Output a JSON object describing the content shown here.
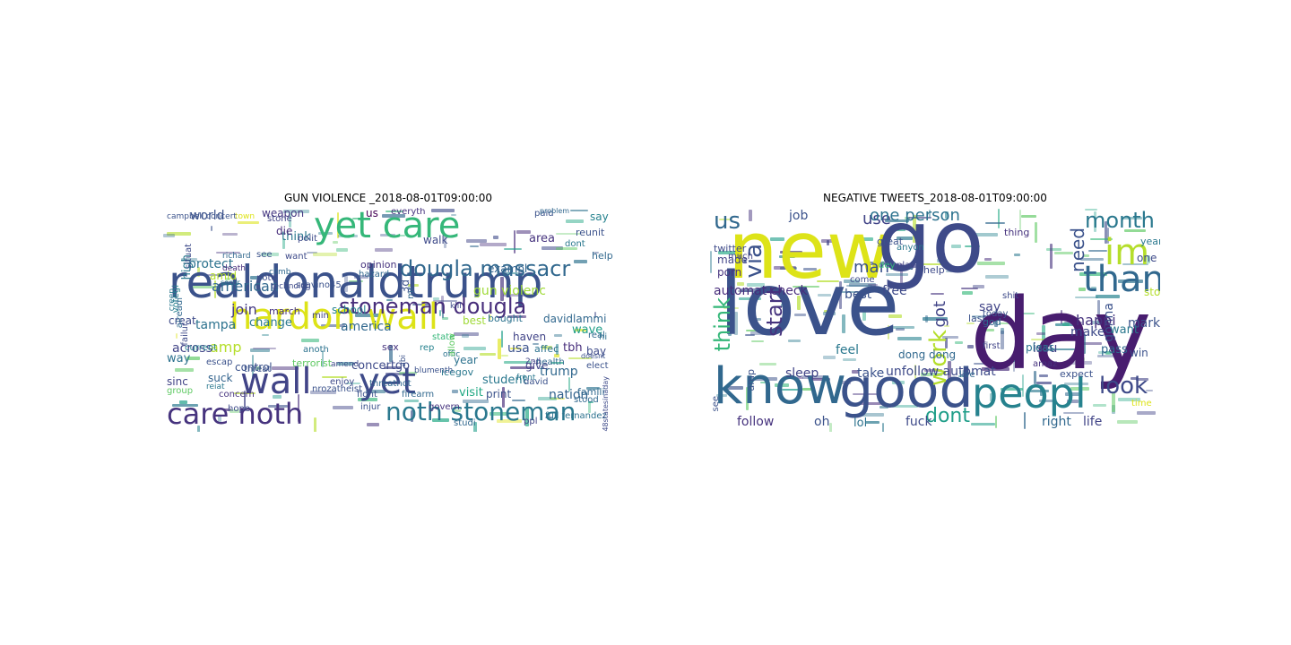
{
  "figure": {
    "panels": [
      {
        "title": "GUN VIOLENCE _2018-08-01T09:00:00",
        "words": [
          {
            "text": "realdonaldtrump",
            "color": "#3b528b"
          },
          {
            "text": "yet care",
            "color": "#35b779"
          },
          {
            "text": "hardon wall",
            "color": "#dde318"
          },
          {
            "text": "wall",
            "color": "#414487"
          },
          {
            "text": "yet",
            "color": "#3e4a89"
          },
          {
            "text": "care noth",
            "color": "#46337e"
          },
          {
            "text": "noth stoneman",
            "color": "#2a788e"
          },
          {
            "text": "dougla massacr",
            "color": "#31688e"
          },
          {
            "text": "stoneman dougla",
            "color": "#472d7b"
          },
          {
            "text": "american",
            "color": "#31688e"
          },
          {
            "text": "join",
            "color": "#443983"
          },
          {
            "text": "protect",
            "color": "#2c728e"
          },
          {
            "text": "world",
            "color": "#3b528b"
          },
          {
            "text": "weapon",
            "color": "#453781"
          },
          {
            "text": "gun violenc",
            "color": "#a0da39"
          },
          {
            "text": "exampl",
            "color": "#33638d"
          },
          {
            "text": "amp",
            "color": "#b5de2b"
          },
          {
            "text": "america",
            "color": "#31688e"
          },
          {
            "text": "school",
            "color": "#26828e"
          },
          {
            "text": "change",
            "color": "#2a788e"
          },
          {
            "text": "march",
            "color": "#46337e"
          },
          {
            "text": "tampa",
            "color": "#2c728e"
          },
          {
            "text": "creat",
            "color": "#3e4a89"
          },
          {
            "text": "across",
            "color": "#414487"
          },
          {
            "text": "control",
            "color": "#3b528b"
          },
          {
            "text": "concertgo",
            "color": "#3e4a89"
          },
          {
            "text": "student",
            "color": "#2a788e"
          },
          {
            "text": "trump",
            "color": "#31688e"
          },
          {
            "text": "nation",
            "color": "#33638d"
          },
          {
            "text": "usa",
            "color": "#3b528b"
          },
          {
            "text": "give",
            "color": "#414487"
          },
          {
            "text": "tbh",
            "color": "#472d7b"
          },
          {
            "text": "visit",
            "color": "#22a884"
          },
          {
            "text": "print",
            "color": "#3b528b"
          },
          {
            "text": "year",
            "color": "#2c728e"
          },
          {
            "text": "best",
            "color": "#a0da39"
          },
          {
            "text": "wave",
            "color": "#1f9e89"
          },
          {
            "text": "area",
            "color": "#46337e"
          },
          {
            "text": "say",
            "color": "#26828e"
          },
          {
            "text": "help",
            "color": "#31688e"
          },
          {
            "text": "reunit",
            "color": "#3b528b"
          },
          {
            "text": "davidlammi",
            "color": "#31688e"
          },
          {
            "text": "bay",
            "color": "#3e4a89"
          },
          {
            "text": "haven",
            "color": "#414487"
          },
          {
            "text": "bought",
            "color": "#2c728e"
          },
          {
            "text": "opinion",
            "color": "#46337e"
          },
          {
            "text": "think",
            "color": "#2a788e"
          },
          {
            "text": "walk",
            "color": "#3e4a89"
          },
          {
            "text": "high",
            "color": "#2a788e"
          },
          {
            "text": "way",
            "color": "#2c728e"
          },
          {
            "text": "sinc",
            "color": "#414487"
          },
          {
            "text": "fight",
            "color": "#3b528b"
          },
          {
            "text": "hope",
            "color": "#3e4a89"
          },
          {
            "text": "firearm",
            "color": "#31688e"
          },
          {
            "text": "sex",
            "color": "#46337e"
          },
          {
            "text": "die",
            "color": "#472d7b"
          },
          {
            "text": "us",
            "color": "#440154"
          },
          {
            "text": "3d",
            "color": "#3b528b"
          },
          {
            "text": "terrorist",
            "color": "#5ec962"
          },
          {
            "text": "escap",
            "color": "#3b528b"
          },
          {
            "text": "current",
            "color": "#26828e"
          },
          {
            "text": "famili",
            "color": "#31688e"
          },
          {
            "text": "affec",
            "color": "#2c728e"
          },
          {
            "text": "suck",
            "color": "#33638d"
          },
          {
            "text": "amid",
            "color": "#b5de2b"
          },
          {
            "text": "concern",
            "color": "#46337e"
          },
          {
            "text": "enjoy",
            "color": "#3e4a89"
          },
          {
            "text": "icegov",
            "color": "#2a788e"
          },
          {
            "text": "david",
            "color": "#3b528b"
          },
          {
            "text": "health",
            "color": "#31688e"
          },
          {
            "text": "stone",
            "color": "#414487"
          },
          {
            "text": "town",
            "color": "#dde318"
          },
          {
            "text": "note",
            "color": "#3e4a89"
          },
          {
            "text": "scavino45",
            "color": "#3b528b"
          },
          {
            "text": "threatnot",
            "color": "#31688e"
          },
          {
            "text": "rep",
            "color": "#26828e"
          },
          {
            "text": "elect",
            "color": "#3b528b"
          },
          {
            "text": "real",
            "color": "#31688e"
          },
          {
            "text": "hi",
            "color": "#2c728e"
          },
          {
            "text": "death",
            "color": "#472d7b"
          },
          {
            "text": "situat",
            "color": "#3e4a89"
          },
          {
            "text": "votegi",
            "color": "#26828e"
          },
          {
            "text": "paid",
            "color": "#3b528b"
          },
          {
            "text": "dont",
            "color": "#2a788e"
          },
          {
            "text": "everyth",
            "color": "#46337e"
          },
          {
            "text": "polit",
            "color": "#3e4a89"
          },
          {
            "text": "hazard",
            "color": "#31688e"
          },
          {
            "text": "anoth",
            "color": "#2c728e"
          },
          {
            "text": "min",
            "color": "#414487"
          },
          {
            "text": "see",
            "color": "#3b528b"
          },
          {
            "text": "richard",
            "color": "#31688e"
          },
          {
            "text": "want",
            "color": "#3e4a89"
          },
          {
            "text": "front",
            "color": "#2a788e"
          },
          {
            "text": "state",
            "color": "#35b779"
          },
          {
            "text": "injur",
            "color": "#3b528b"
          },
          {
            "text": "govern",
            "color": "#46337e"
          },
          {
            "text": "studi",
            "color": "#31688e"
          },
          {
            "text": "ppl",
            "color": "#414487"
          },
          {
            "text": "full fernandez",
            "color": "#2c728e"
          },
          {
            "text": "doesnt",
            "color": "#3b528b"
          },
          {
            "text": "48statesinaday",
            "color": "#3e4a89"
          },
          {
            "text": "stood",
            "color": "#31688e"
          },
          {
            "text": "group",
            "color": "#5ec962"
          },
          {
            "text": "nrozatheist",
            "color": "#3b528b"
          },
          {
            "text": "reiat",
            "color": "#2a788e"
          },
          {
            "text": "climb",
            "color": "#31688e"
          },
          {
            "text": "technolog",
            "color": "#3e4a89"
          },
          {
            "text": "offic",
            "color": "#2c728e"
          },
          {
            "text": "blumenth",
            "color": "#3b528b"
          },
          {
            "text": "alreadi",
            "color": "#31688e"
          },
          {
            "text": "failur",
            "color": "#3e4a89"
          },
          {
            "text": "creep",
            "color": "#2a788e"
          },
          {
            "text": "threat",
            "color": "#3b528b"
          },
          {
            "text": "mr",
            "color": "#31688e"
          },
          {
            "text": "2nd",
            "color": "#414487"
          },
          {
            "text": "abi",
            "color": "#3b528b"
          },
          {
            "text": "allow",
            "color": "#5ec962"
          },
          {
            "text": "kill",
            "color": "#3e4a89"
          },
          {
            "text": "problem",
            "color": "#31688e"
          },
          {
            "text": "campbell concert",
            "color": "#3b528b"
          },
          {
            "text": "secur",
            "color": "#2c728e"
          },
          {
            "text": "amend",
            "color": "#3e4a89"
          }
        ]
      },
      {
        "title": "NEGATIVE TWEETS_2018-08-01T09:00:00",
        "words": [
          {
            "text": "new",
            "color": "#dde318"
          },
          {
            "text": "love",
            "color": "#3b528b"
          },
          {
            "text": "go",
            "color": "#3e4a89"
          },
          {
            "text": "day",
            "color": "#481d6f"
          },
          {
            "text": "know",
            "color": "#31688e"
          },
          {
            "text": "good",
            "color": "#3b528b"
          },
          {
            "text": "peopl",
            "color": "#26828e"
          },
          {
            "text": "thank",
            "color": "#31688e"
          },
          {
            "text": "im",
            "color": "#b5de2b"
          },
          {
            "text": "month",
            "color": "#2a788e"
          },
          {
            "text": "us",
            "color": "#31688e"
          },
          {
            "text": "via",
            "color": "#3b528b"
          },
          {
            "text": "think",
            "color": "#35b779"
          },
          {
            "text": "start",
            "color": "#46337e"
          },
          {
            "text": "work",
            "color": "#b5de2b"
          },
          {
            "text": "got",
            "color": "#414487"
          },
          {
            "text": "need",
            "color": "#3b528b"
          },
          {
            "text": "look",
            "color": "#3e4a89"
          },
          {
            "text": "dont",
            "color": "#1f9e89"
          },
          {
            "text": "man",
            "color": "#3b528b"
          },
          {
            "text": "use",
            "color": "#414487"
          },
          {
            "text": "one person",
            "color": "#2c728e"
          },
          {
            "text": "automat check",
            "color": "#472d7b"
          },
          {
            "text": "best",
            "color": "#3b528b"
          },
          {
            "text": "free",
            "color": "#3e4a89"
          },
          {
            "text": "say",
            "color": "#414487"
          },
          {
            "text": "take",
            "color": "#3b528b"
          },
          {
            "text": "feel",
            "color": "#2a788e"
          },
          {
            "text": "sleep",
            "color": "#414487"
          },
          {
            "text": "unfollow automat",
            "color": "#3e4a89"
          },
          {
            "text": "follow",
            "color": "#46337e"
          },
          {
            "text": "oh",
            "color": "#3b528b"
          },
          {
            "text": "lol",
            "color": "#2c728e"
          },
          {
            "text": "fuck",
            "color": "#3e4a89"
          },
          {
            "text": "right",
            "color": "#31688e"
          },
          {
            "text": "life",
            "color": "#414487"
          },
          {
            "text": "gonna",
            "color": "#3b528b"
          },
          {
            "text": "happi",
            "color": "#46337e"
          },
          {
            "text": "make",
            "color": "#3e4a89"
          },
          {
            "text": "want",
            "color": "#2a788e"
          },
          {
            "text": "market",
            "color": "#3b528b"
          },
          {
            "text": "pass",
            "color": "#31688e"
          },
          {
            "text": "issu",
            "color": "#414487"
          },
          {
            "text": "pleas",
            "color": "#2c728e"
          },
          {
            "text": "win",
            "color": "#3b528b"
          },
          {
            "text": "one",
            "color": "#3e4a89"
          },
          {
            "text": "stop",
            "color": "#b5de2b"
          },
          {
            "text": "job",
            "color": "#3b528b"
          },
          {
            "text": "porn",
            "color": "#46337e"
          },
          {
            "text": "made",
            "color": "#414487"
          },
          {
            "text": "twitter",
            "color": "#3e4a89"
          },
          {
            "text": "dong dong",
            "color": "#31688e"
          },
          {
            "text": "amp",
            "color": "#3b528b"
          },
          {
            "text": "anyon",
            "color": "#2a788e"
          },
          {
            "text": "play",
            "color": "#414487"
          },
          {
            "text": "help",
            "color": "#3e4a89"
          },
          {
            "text": "great",
            "color": "#3b528b"
          },
          {
            "text": "thing",
            "color": "#46337e"
          },
          {
            "text": "today",
            "color": "#3b528b"
          },
          {
            "text": "god",
            "color": "#31688e"
          },
          {
            "text": "first",
            "color": "#414487"
          },
          {
            "text": "shit",
            "color": "#3e4a89"
          },
          {
            "text": "last",
            "color": "#3b528b"
          },
          {
            "text": "live",
            "color": "#31688e"
          },
          {
            "text": "time",
            "color": "#dde318"
          },
          {
            "text": "year",
            "color": "#2a788e"
          },
          {
            "text": "see",
            "color": "#3b528b"
          },
          {
            "text": "much",
            "color": "#414487"
          },
          {
            "text": "come",
            "color": "#3e4a89"
          },
          {
            "text": "dey",
            "color": "#35b779"
          },
          {
            "text": "expect",
            "color": "#3b528b"
          },
          {
            "text": "amaz",
            "color": "#46337e"
          }
        ]
      }
    ]
  }
}
